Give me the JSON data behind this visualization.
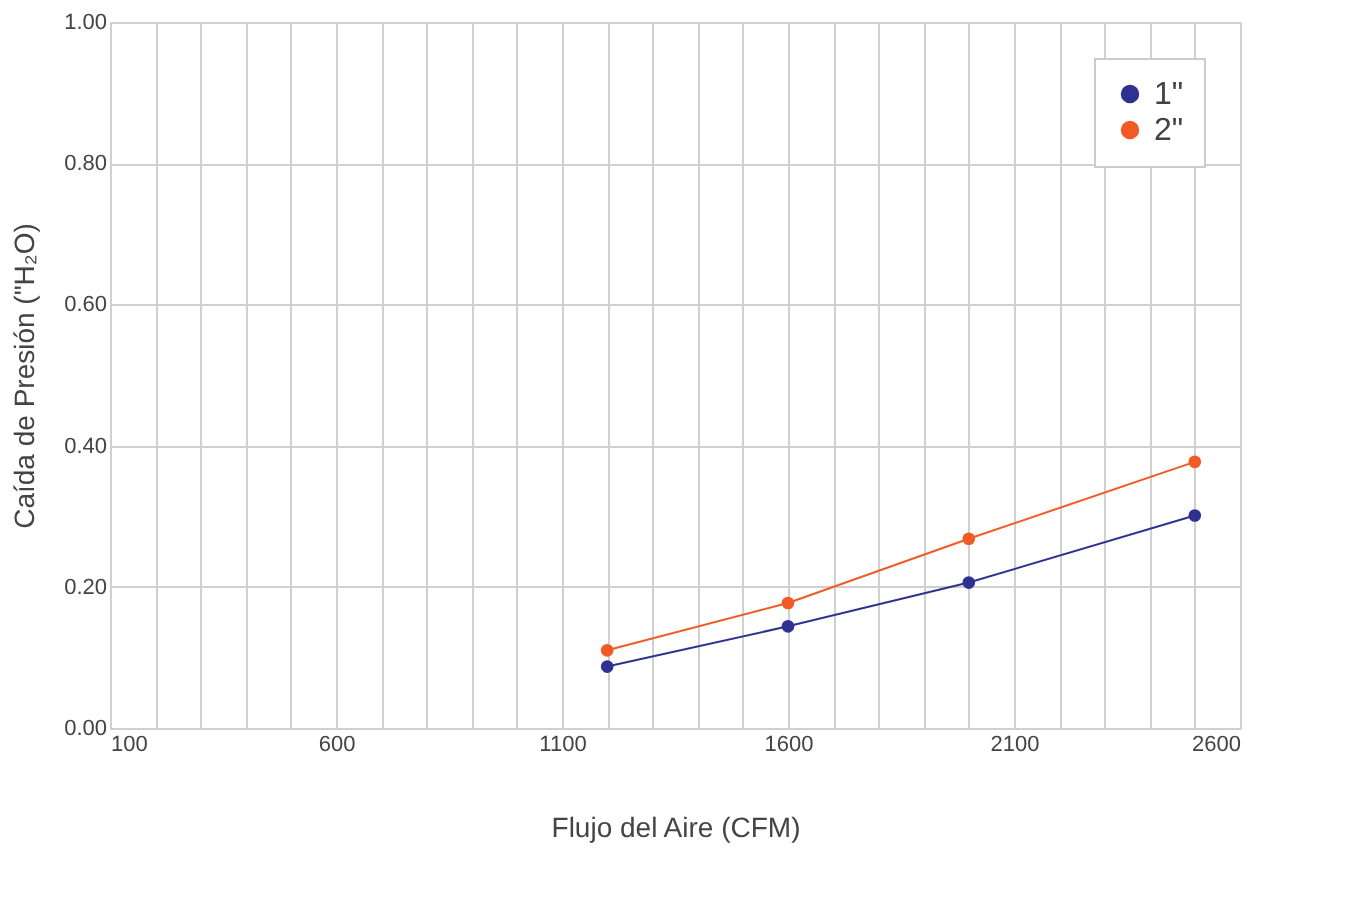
{
  "chart_data": {
    "type": "line",
    "xlabel": "Flujo del Aire (CFM)",
    "ylabel": "Caída de Presión (\"H₂O)",
    "x": [
      1200,
      1600,
      2000,
      2500
    ],
    "series": [
      {
        "name": "1\"",
        "color": "#2e3192",
        "values": [
          0.087,
          0.144,
          0.206,
          0.301
        ]
      },
      {
        "name": "2\"",
        "color": "#f15a24",
        "values": [
          0.11,
          0.177,
          0.268,
          0.377
        ]
      }
    ],
    "xlim": [
      100,
      2600
    ],
    "xticks": [
      100,
      {
        "value": 200,
        "label": null
      },
      {
        "value": 300,
        "label": null
      },
      {
        "value": 400,
        "label": null
      },
      {
        "value": 500,
        "label": null
      },
      600,
      {
        "value": 700,
        "label": null
      },
      {
        "value": 800,
        "label": null
      },
      {
        "value": 900,
        "label": null
      },
      {
        "value": 1000,
        "label": null
      },
      1100,
      {
        "value": 1200,
        "label": null
      },
      {
        "value": 1300,
        "label": null
      },
      {
        "value": 1400,
        "label": null
      },
      {
        "value": 1500,
        "label": null
      },
      1600,
      {
        "value": 1700,
        "label": null
      },
      {
        "value": 1800,
        "label": null
      },
      {
        "value": 1900,
        "label": null
      },
      {
        "value": 2000,
        "label": null
      },
      2100,
      {
        "value": 2200,
        "label": null
      },
      {
        "value": 2300,
        "label": null
      },
      {
        "value": 2400,
        "label": null
      },
      {
        "value": 2500,
        "label": null
      },
      2600
    ],
    "ylim": [
      0,
      1
    ],
    "yticks": [
      {
        "value": 0,
        "label": "0.00"
      },
      {
        "value": 0.2,
        "label": "0.20"
      },
      {
        "value": 0.4,
        "label": "0.40"
      },
      {
        "value": 0.6,
        "label": "0.60"
      },
      {
        "value": 0.8,
        "label": "0.80"
      },
      {
        "value": 1,
        "label": "1.00"
      }
    ],
    "grid": true,
    "legend": "top right",
    "marker": "circle",
    "line_style": "solid"
  }
}
